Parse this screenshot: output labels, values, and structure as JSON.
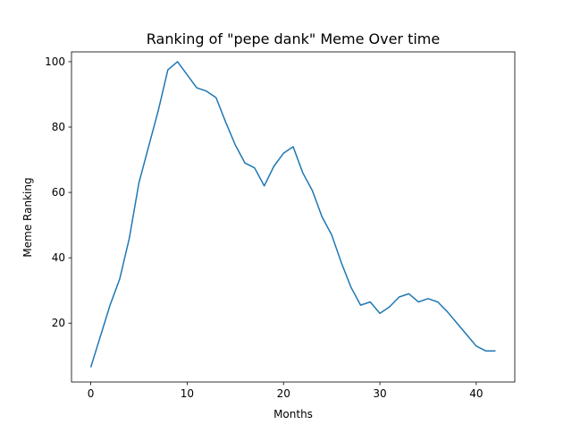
{
  "chart_data": {
    "type": "line",
    "title": "Ranking of \"pepe dank\" Meme Over time",
    "xlabel": "Months",
    "ylabel": "Meme Ranking",
    "xlim": [
      -2,
      44
    ],
    "ylim": [
      2,
      103
    ],
    "xticks": [
      0,
      10,
      20,
      30,
      40
    ],
    "yticks": [
      20,
      40,
      60,
      80,
      100
    ],
    "grid": false,
    "line_color": "#1f77b4",
    "series": [
      {
        "x": [
          0,
          1,
          2,
          3,
          4,
          5,
          6,
          7,
          8,
          9,
          10,
          11,
          12,
          13,
          14,
          15,
          16,
          17,
          18,
          19,
          20,
          21,
          22,
          23,
          24,
          25,
          26,
          27,
          28,
          29,
          30,
          31,
          32,
          33,
          34,
          35,
          36,
          37,
          38,
          39,
          40,
          41,
          42
        ],
        "values": [
          6.5,
          16,
          25.5,
          33.5,
          46,
          63,
          74,
          85,
          97.5,
          100,
          96,
          92,
          91,
          89,
          81.5,
          74.5,
          69,
          67.5,
          62,
          68,
          72,
          74,
          66,
          60.5,
          52.5,
          47,
          38.5,
          31,
          25.5,
          26.5,
          23,
          25,
          28,
          29,
          26.5,
          27.5,
          26.5,
          23.5,
          20,
          16.5,
          13,
          11.5,
          11.5
        ]
      }
    ]
  }
}
